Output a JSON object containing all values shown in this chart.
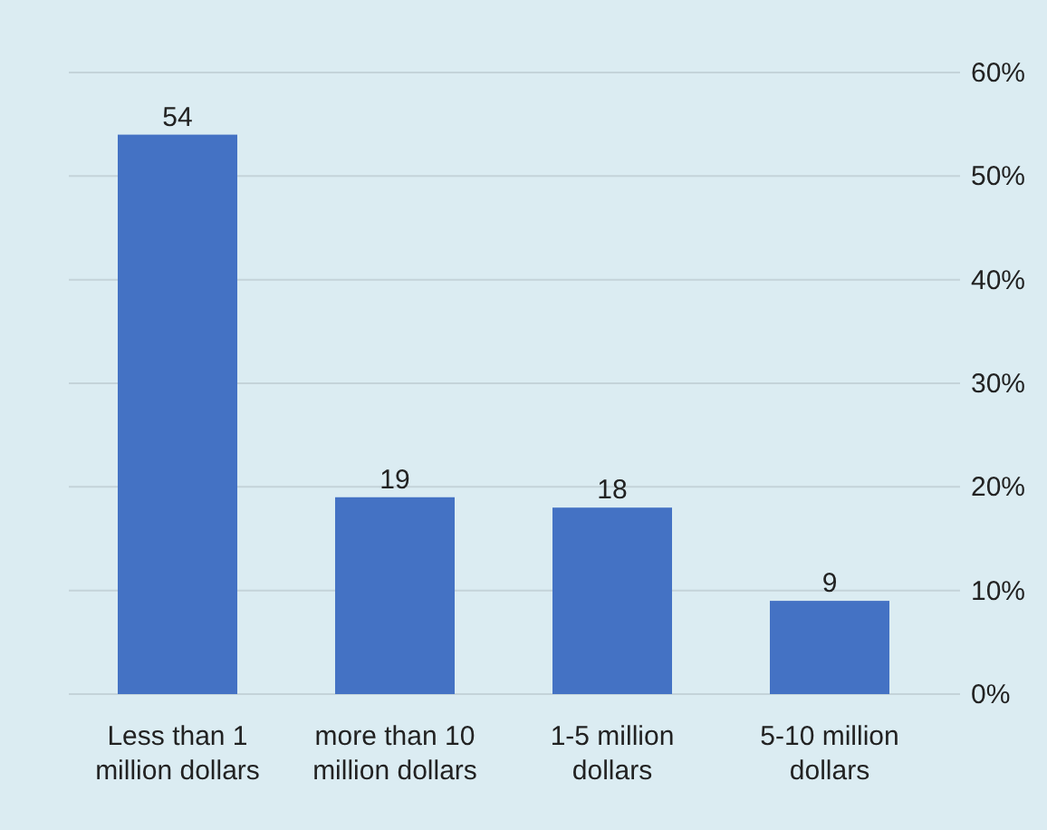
{
  "chart_data": {
    "type": "bar",
    "categories": [
      "Less than 1 million dollars",
      "more than 10 million dollars",
      "1-5 million dollars",
      "5-10 million dollars"
    ],
    "values": [
      54,
      19,
      18,
      9
    ],
    "color": "#4472c4",
    "data_labels": true,
    "ylim": [
      0,
      60
    ],
    "yticks": [
      {
        "value": 0,
        "label": "0%"
      },
      {
        "value": 10,
        "label": "10%"
      },
      {
        "value": 20,
        "label": "20%"
      },
      {
        "value": 30,
        "label": "30%"
      },
      {
        "value": 40,
        "label": "40%"
      },
      {
        "value": 50,
        "label": "50%"
      },
      {
        "value": 60,
        "label": "60%"
      }
    ],
    "grid": "y"
  }
}
